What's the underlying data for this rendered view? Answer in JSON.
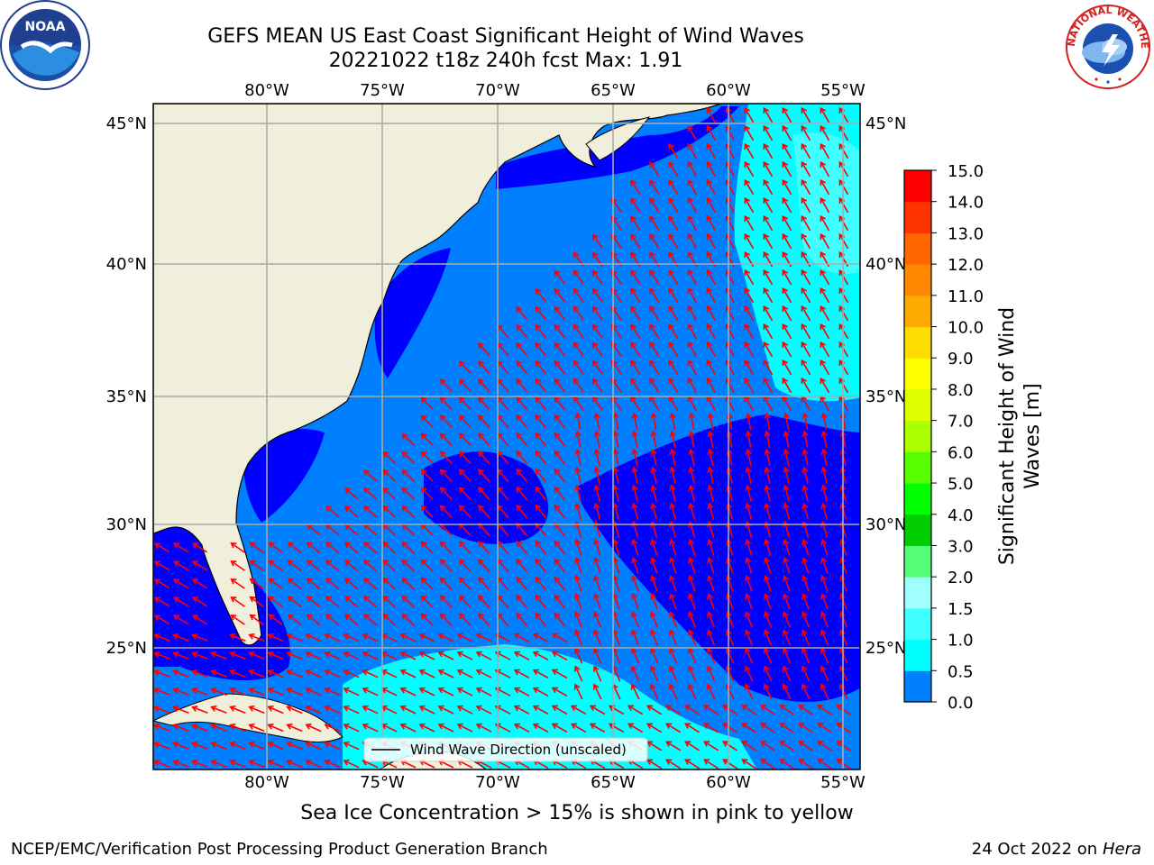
{
  "title": {
    "line1": "GEFS MEAN US East Coast Significant Height of Wind Waves",
    "line2": "20221022 t18z 240h fcst   Max: 1.91"
  },
  "logos": {
    "left_icon": "noaa-logo",
    "left_text": "NOAA",
    "right_icon": "nws-logo",
    "right_text": "NATIONAL WEATHER SERVICE"
  },
  "map": {
    "lon_labels": [
      "80°W",
      "75°W",
      "70°W",
      "65°W",
      "60°W",
      "55°W"
    ],
    "lat_labels": [
      "45°N",
      "40°N",
      "35°N",
      "30°N",
      "25°N"
    ],
    "legend_label": "Wind Wave Direction (unscaled)",
    "colors": {
      "land": "#efefdc",
      "band_0_05": "#0000ff",
      "band_05_10": "#0080ff",
      "band_10_15": "#00ffff",
      "band_15_20": "#40ffff",
      "arrow": "#ff0000",
      "grid": "#aaaaaa"
    }
  },
  "colorbar": {
    "ticks": [
      "15.0",
      "14.0",
      "13.0",
      "12.0",
      "11.0",
      "10.0",
      "9.0",
      "8.0",
      "7.0",
      "6.0",
      "5.0",
      "4.0",
      "3.0",
      "2.0",
      "1.5",
      "1.0",
      "0.5",
      "0.0"
    ],
    "colors": [
      "#ff0000",
      "#ff3300",
      "#ff6600",
      "#ff8800",
      "#ffaa00",
      "#ffdd00",
      "#ffff00",
      "#ddff00",
      "#aaff00",
      "#55ff00",
      "#00ff00",
      "#00cc00",
      "#55ff77",
      "#a0ffff",
      "#40ffff",
      "#00ffff",
      "#0080ff",
      "#0000ff"
    ],
    "label_line1": "Significant Height of Wind",
    "label_line2": "Waves [m]"
  },
  "sea_ice_note": "Sea Ice Concentration > 15% is shown in pink to yellow",
  "footer": {
    "left": "NCEP/EMC/Verification Post Processing Product Generation Branch",
    "right_date": "24 Oct 2022 on",
    "right_machine": "Hera"
  }
}
